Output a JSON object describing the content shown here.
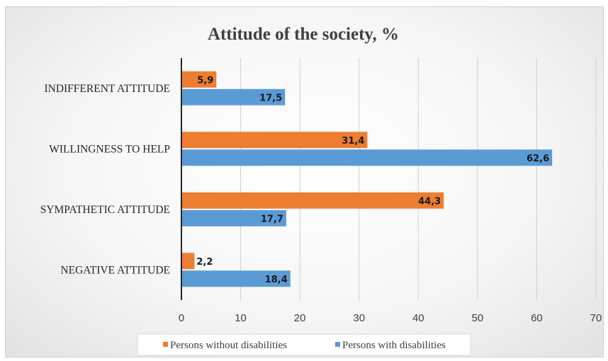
{
  "chart_data": {
    "type": "bar",
    "orientation": "horizontal",
    "title": "Attitude of the society, %",
    "categories": [
      "INDIFFERENT ATTITUDE",
      "WILLINGNESS TO HELP",
      "SYMPATHETIC ATTITUDE",
      "NEGATIVE ATTITUDE"
    ],
    "series": [
      {
        "name": "Persons without disabilities",
        "color": "#ed7d31",
        "values": [
          5.9,
          31.4,
          44.3,
          2.2
        ],
        "labels": [
          "5,9",
          "31,4",
          "44,3",
          "2,2"
        ]
      },
      {
        "name": "Persons with disabilities",
        "color": "#5b9bd5",
        "values": [
          17.5,
          62.6,
          17.7,
          18.4
        ],
        "labels": [
          "17,5",
          "62,6",
          "17,7",
          "18,4"
        ]
      }
    ],
    "xlim": [
      0,
      70
    ],
    "xticks": [
      "0",
      "10",
      "20",
      "30",
      "40",
      "50",
      "60",
      "70"
    ],
    "grid": true,
    "legend_position": "bottom"
  }
}
